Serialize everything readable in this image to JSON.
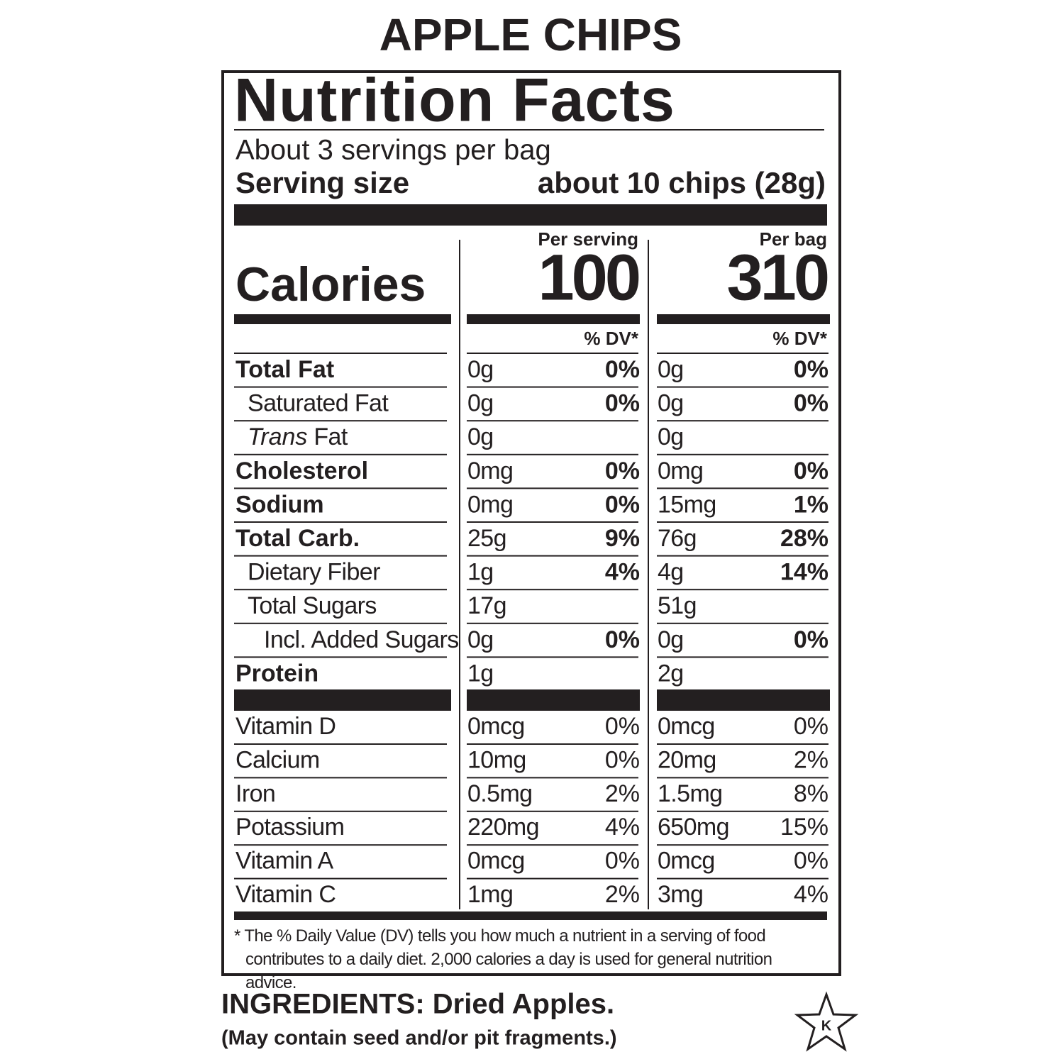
{
  "title": "APPLE CHIPS",
  "label": {
    "heading": "Nutrition Facts",
    "servings": "About 3 servings per bag",
    "serving_size_label": "Serving size",
    "serving_size_value": "about 10 chips (28g)",
    "columns": [
      "Per serving",
      "Per bag"
    ],
    "calories_label": "Calories",
    "calories": [
      100,
      310
    ],
    "dv_header": "% DV*",
    "nutrients": [
      {
        "name": "Total Fat",
        "serving": "0g",
        "serving_dv": "0%",
        "bag": "0g",
        "bag_dv": "0%",
        "sub": [
          {
            "name": "Saturated Fat",
            "serving": "0g",
            "serving_dv": "0%",
            "bag": "0g",
            "bag_dv": "0%"
          },
          {
            "italic": "Trans",
            "name": "Fat",
            "serving": "0g",
            "bag": "0g"
          }
        ]
      },
      {
        "name": "Cholesterol",
        "serving": "0mg",
        "serving_dv": "0%",
        "bag": "0mg",
        "bag_dv": "0%"
      },
      {
        "name": "Sodium",
        "serving": "0mg",
        "serving_dv": "0%",
        "bag": "15mg",
        "bag_dv": "1%"
      },
      {
        "name": "Total Carb.",
        "serving": "25g",
        "serving_dv": "9%",
        "bag": "76g",
        "bag_dv": "28%",
        "sub": [
          {
            "name": "Dietary Fiber",
            "serving": "1g",
            "serving_dv": "4%",
            "bag": "4g",
            "bag_dv": "14%"
          },
          {
            "name": "Total Sugars",
            "serving": "17g",
            "bag": "51g",
            "sub": [
              {
                "name": "Incl. Added Sugars",
                "serving": "0g",
                "serving_dv": "0%",
                "bag": "0g",
                "bag_dv": "0%"
              }
            ]
          }
        ]
      },
      {
        "name": "Protein",
        "serving": "1g",
        "bag": "2g"
      }
    ],
    "vitamins": [
      {
        "name": "Vitamin D",
        "serving": "0mcg",
        "serving_dv": "0%",
        "bag": "0mcg",
        "bag_dv": "0%"
      },
      {
        "name": "Calcium",
        "serving": "10mg",
        "serving_dv": "0%",
        "bag": "20mg",
        "bag_dv": "2%"
      },
      {
        "name": "Iron",
        "serving": "0.5mg",
        "serving_dv": "2%",
        "bag": "1.5mg",
        "bag_dv": "8%"
      },
      {
        "name": "Potassium",
        "serving": "220mg",
        "serving_dv": "4%",
        "bag": "650mg",
        "bag_dv": "15%"
      },
      {
        "name": "Vitamin A",
        "serving": "0mcg",
        "serving_dv": "0%",
        "bag": "0mcg",
        "bag_dv": "0%"
      },
      {
        "name": "Vitamin C",
        "serving": "1mg",
        "serving_dv": "2%",
        "bag": "3mg",
        "bag_dv": "4%"
      }
    ],
    "footnote": "* The % Daily Value (DV) tells you how much a nutrient in a serving of food contributes to a daily diet. 2,000 calories a day is used for general nutrition advice."
  },
  "ingredients": "INGREDIENTS: Dried Apples.",
  "allergen_note": "(May contain seed and/or pit fragments.)",
  "kosher_mark": "K"
}
